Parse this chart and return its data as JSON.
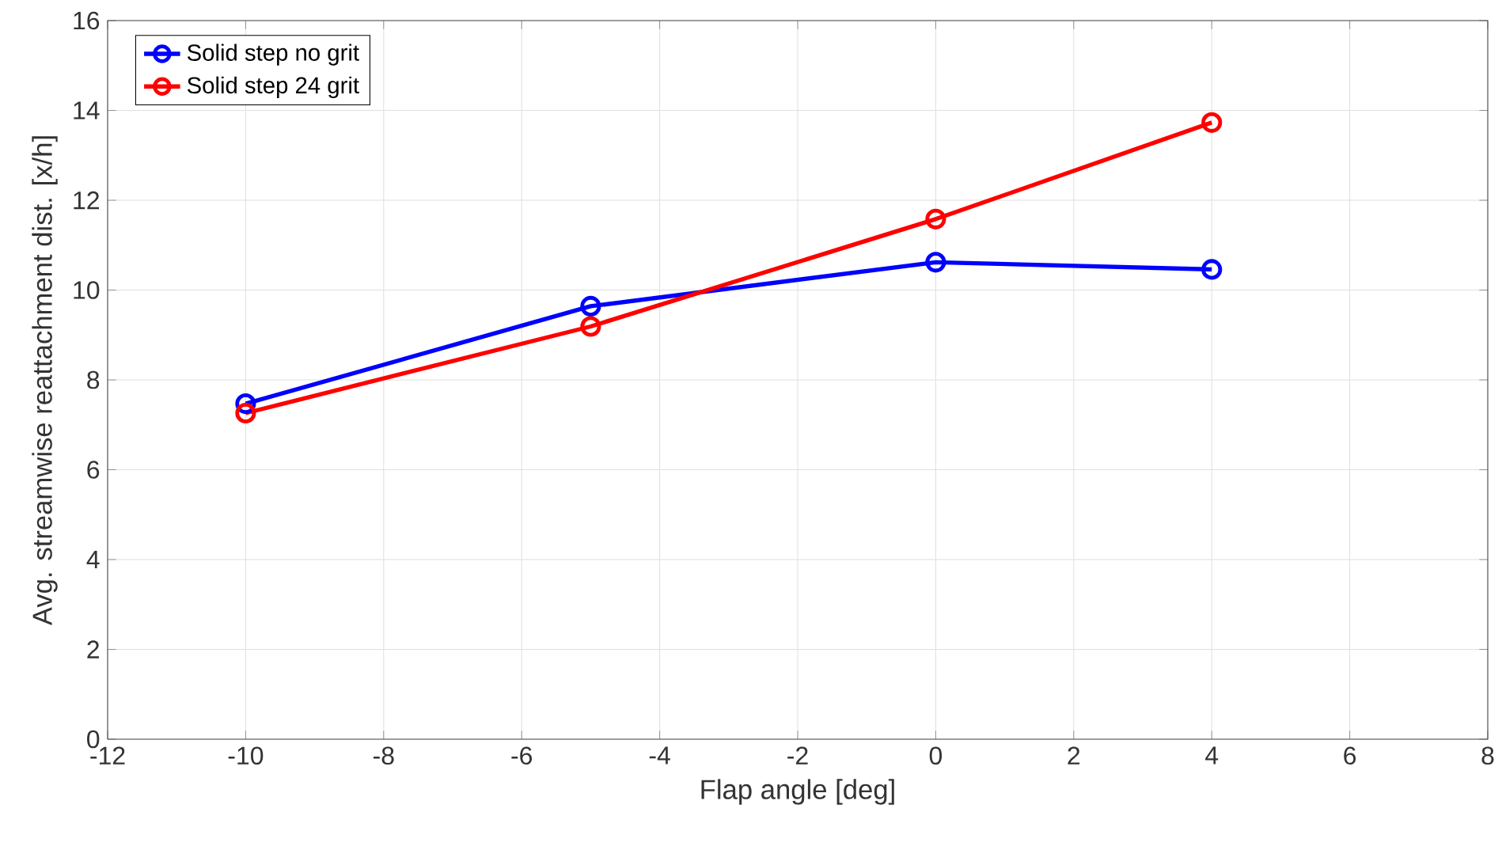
{
  "chart_data": {
    "type": "line",
    "xlabel": "Flap angle [deg]",
    "ylabel": "Avg. streamwise reattachment dist. [x/h]",
    "x": [
      -10,
      -5,
      0,
      4
    ],
    "series": [
      {
        "name": "Solid step no grit",
        "color": "#0000ff",
        "values": [
          7.47,
          9.64,
          10.62,
          10.46
        ]
      },
      {
        "name": "Solid step 24 grit",
        "color": "#ff0000",
        "values": [
          7.26,
          9.19,
          11.58,
          13.73
        ]
      }
    ],
    "xlim": [
      -12,
      8
    ],
    "ylim": [
      0,
      16
    ],
    "xticks": [
      -12,
      -10,
      -8,
      -6,
      -4,
      -2,
      0,
      2,
      4,
      6,
      8
    ],
    "yticks": [
      0,
      2,
      4,
      6,
      8,
      10,
      12,
      14,
      16
    ],
    "grid": true,
    "legend": "top left",
    "marker": "circle",
    "line_style": "solid"
  }
}
